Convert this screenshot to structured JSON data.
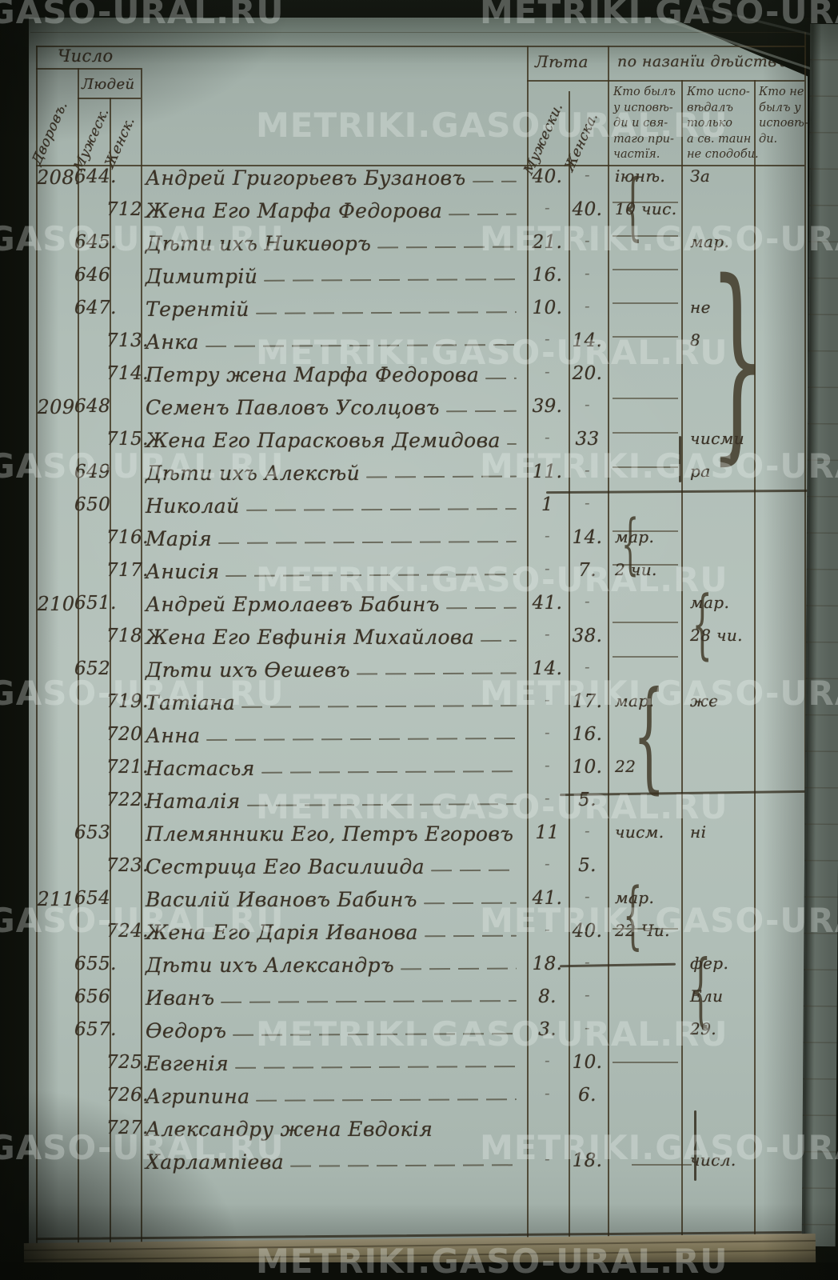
{
  "watermark": {
    "text": "METRIKI.GASO-URAL.RU"
  },
  "colors": {
    "paper": "#b2c0b9",
    "ink": "#3a3226",
    "background": "#12150e",
    "page_edge_tan": "#ab9f80",
    "watermark": "rgba(240,245,242,0.3)"
  },
  "header": {
    "top_left": {
      "group": "Число",
      "col1_rot": "Дворовъ.",
      "sub_group": "Людей",
      "col2_rot": "Мужеск.",
      "col3_rot": "Женск."
    },
    "ages": {
      "group": "Лѣта",
      "male_rot": "Мужески.",
      "female_rot": "Женска."
    },
    "acts": {
      "group": "по назанїи дѣйствъ",
      "col1_lines": [
        "Кто былъ",
        "у исповѣ-",
        "ди и свя-",
        "таго при-",
        "частїя."
      ],
      "col2_lines": [
        "Кто испо-",
        "вѣдалъ",
        "только",
        "а св. таин",
        "не сподоби."
      ],
      "col3_lines": [
        "Кто не",
        "былъ у",
        "исповѣ-",
        "ди."
      ]
    }
  },
  "rows": [
    {
      "dvor": "208.",
      "num_m": "644.",
      "name": "Андрей Григорьевъ Бузановъ",
      "age_m": "40.",
      "ann1": "іюнѣ.",
      "ann2": "За"
    },
    {
      "num_f": "712",
      "name": "Жена Его Марфа Федорова",
      "age_f": "40.",
      "ann1": "10 чис."
    },
    {
      "num_m": "645.",
      "name": "Дѣти ихъ Никиѳоръ",
      "age_m": "21.",
      "ann2": "мар."
    },
    {
      "num_m": "646",
      "name": "Димитрій",
      "age_m": "16."
    },
    {
      "num_m": "647.",
      "name": "Терентій",
      "age_m": "10.",
      "ann2": "не"
    },
    {
      "num_f": "713.",
      "name": "Анка",
      "age_f": "14.",
      "ann2": "8"
    },
    {
      "num_f": "714.",
      "name": "Петру жена Марфа Федорова",
      "age_f": "20."
    },
    {
      "dvor": "209",
      "num_m": "648",
      "name": "Семенъ Павловъ Усолцовъ",
      "age_m": "39."
    },
    {
      "num_f": "715.",
      "name": "Жена Его Парасковья Демидова",
      "age_f": "33",
      "ann2": "чисми"
    },
    {
      "num_m": "649",
      "name": "Дѣти ихъ Алексѣй",
      "age_m": "11.",
      "ann2": "ра"
    },
    {
      "num_m": "650",
      "name": "Николай",
      "age_m": "1"
    },
    {
      "num_f": "716.",
      "name": "Марія",
      "age_f": "14.",
      "ann1": "мар."
    },
    {
      "num_f": "717.",
      "name": "Анисія",
      "age_f": "7.",
      "ann1": "2 чи."
    },
    {
      "dvor": "210",
      "num_m": "651.",
      "name": "Андрей Ермолаевъ Бабинъ",
      "age_m": "41.",
      "ann2": "мар."
    },
    {
      "num_f": "718",
      "name": "Жена Его Евфинія Михайлова",
      "age_f": "38.",
      "ann2": "28 чи."
    },
    {
      "num_m": "652",
      "name": "Дѣти ихъ Ѳешевъ",
      "age_m": "14."
    },
    {
      "num_f": "719.",
      "name": "Татіана",
      "age_f": "17.",
      "ann1": "мар.",
      "ann2": "же"
    },
    {
      "num_f": "720",
      "name": "Анна",
      "age_f": "16."
    },
    {
      "num_f": "721.",
      "name": "Настасья",
      "age_f": "10.",
      "ann1": "22"
    },
    {
      "num_f": "722.",
      "name": "Наталія",
      "age_f": "5."
    },
    {
      "num_m": "653",
      "name": "Племянники Его, Петръ Егоровъ",
      "age_m": "11",
      "ann1": "чисм.",
      "ann2": "ні"
    },
    {
      "num_f": "723.",
      "name": "Сестрица Его Василиида",
      "age_f": "5."
    },
    {
      "dvor": "211",
      "num_m": "654",
      "name": "Василій Ивановъ Бабинъ",
      "age_m": "41.",
      "ann1": "мар."
    },
    {
      "num_f": "724.",
      "name": "Жена Его Дарія Иванова",
      "age_f": "40.",
      "ann1": "22 Чи."
    },
    {
      "num_m": "655.",
      "name": "Дѣти ихъ Александръ",
      "age_m": "18.",
      "ann2": "фер."
    },
    {
      "num_m": "656",
      "name": "Иванъ",
      "age_m": "8.",
      "ann2": "Ели"
    },
    {
      "num_m": "657.",
      "name": "Ѳедоръ",
      "age_m": "3.",
      "ann2": "29."
    },
    {
      "num_f": "725.",
      "name": "Евгенія",
      "age_f": "10."
    },
    {
      "num_f": "726.",
      "name": "Агрипина",
      "age_f": "6."
    },
    {
      "num_f": "727.",
      "name": "Александру жена Евдокія",
      "dash": false
    },
    {
      "name": "Харлампіева",
      "age_f": "18.",
      "ann2": "числ."
    }
  ]
}
